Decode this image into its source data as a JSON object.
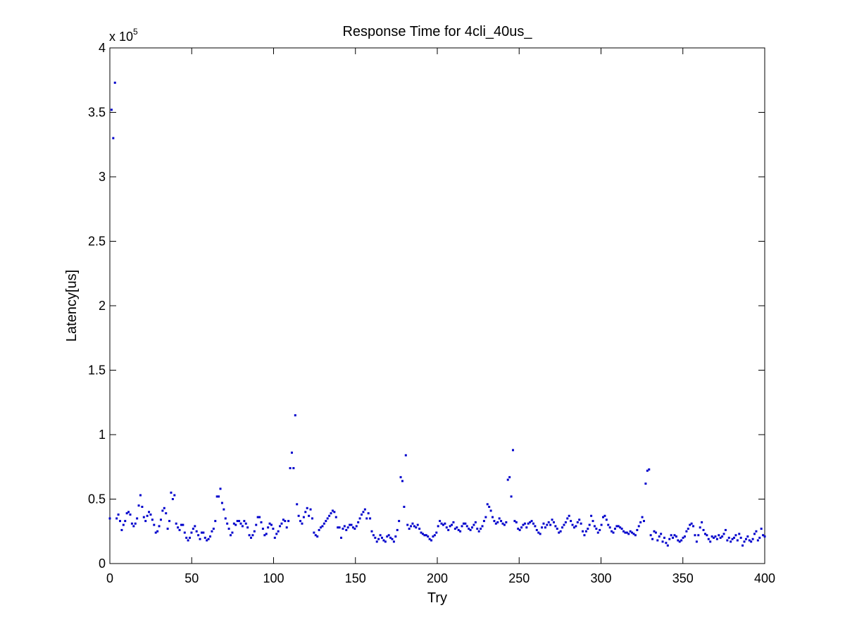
{
  "chart_data": {
    "type": "scatter",
    "title": "Response Time for 4cli_40us_",
    "xlabel": "Try",
    "ylabel": "Latency[us]",
    "y_multiplier_base": "x 10",
    "y_multiplier_exp": "5",
    "xlim": [
      0,
      400
    ],
    "ylim": [
      0,
      400000
    ],
    "xticks": [
      0,
      50,
      100,
      150,
      200,
      250,
      300,
      350,
      400
    ],
    "xtick_labels": [
      "0",
      "50",
      "100",
      "150",
      "200",
      "250",
      "300",
      "350",
      "400"
    ],
    "yticks": [
      0,
      50000,
      100000,
      150000,
      200000,
      250000,
      300000,
      350000,
      400000
    ],
    "ytick_labels": [
      "0",
      "0.5",
      "1",
      "1.5",
      "2",
      "2.5",
      "3",
      "3.5",
      "4"
    ],
    "grid": false,
    "marker_color": "#0000cc",
    "series": [
      {
        "y": [
          35000,
          352000,
          330000,
          373000,
          35000,
          38000,
          33000,
          26000,
          30000,
          33000,
          39000,
          40000,
          38000,
          31000,
          29000,
          31000,
          35000,
          45000,
          53000,
          44000,
          36000,
          33000,
          37000,
          40000,
          38000,
          34000,
          30000,
          24000,
          25000,
          29000,
          34000,
          41000,
          43000,
          39000,
          27000,
          33000,
          55000,
          50000,
          53000,
          31000,
          28000,
          26000,
          30000,
          30000,
          24000,
          20000,
          18000,
          20000,
          24000,
          27000,
          29000,
          25000,
          22000,
          19000,
          24000,
          24000,
          20000,
          18000,
          19000,
          21000,
          25000,
          27000,
          33000,
          52000,
          52000,
          58000,
          47000,
          42000,
          35000,
          31000,
          27000,
          22000,
          24000,
          31000,
          30000,
          33000,
          33000,
          31000,
          29000,
          33000,
          31000,
          28000,
          22000,
          20000,
          22000,
          25000,
          30000,
          36000,
          36000,
          32000,
          27000,
          22000,
          23000,
          28000,
          31000,
          30000,
          27000,
          20000,
          23000,
          25000,
          29000,
          31000,
          34000,
          33000,
          28000,
          33000,
          74000,
          86000,
          74000,
          115000,
          46000,
          37000,
          33000,
          31000,
          36000,
          40000,
          43000,
          37000,
          42000,
          35000,
          24000,
          22000,
          21000,
          26000,
          28000,
          29000,
          31000,
          33000,
          35000,
          37000,
          39000,
          41000,
          40000,
          36000,
          28000,
          28000,
          20000,
          27000,
          29000,
          26000,
          28000,
          30000,
          30000,
          28000,
          27000,
          29000,
          32000,
          35000,
          38000,
          40000,
          42000,
          35000,
          39000,
          35000,
          25000,
          22000,
          20000,
          17000,
          19000,
          22000,
          20000,
          18000,
          17000,
          21000,
          22000,
          20000,
          19000,
          17000,
          21000,
          26000,
          33000,
          67000,
          64000,
          44000,
          84000,
          30000,
          27000,
          29000,
          31000,
          29000,
          28000,
          30000,
          27000,
          24000,
          23000,
          22000,
          22000,
          21000,
          19000,
          18000,
          21000,
          22000,
          24000,
          29000,
          33000,
          31000,
          30000,
          31000,
          28000,
          26000,
          29000,
          30000,
          32000,
          27000,
          28000,
          26000,
          25000,
          29000,
          31000,
          31000,
          29000,
          27000,
          26000,
          28000,
          30000,
          32000,
          27000,
          25000,
          27000,
          29000,
          33000,
          36000,
          46000,
          44000,
          41000,
          36000,
          33000,
          31000,
          32000,
          35000,
          33000,
          31000,
          30000,
          32000,
          65000,
          67000,
          52000,
          88000,
          33000,
          32000,
          27000,
          26000,
          28000,
          30000,
          31000,
          28000,
          31000,
          32000,
          33000,
          31000,
          29000,
          26000,
          24000,
          23000,
          28000,
          31000,
          28000,
          30000,
          32000,
          30000,
          34000,
          32000,
          29000,
          27000,
          24000,
          25000,
          28000,
          30000,
          32000,
          35000,
          37000,
          33000,
          30000,
          28000,
          29000,
          32000,
          34000,
          31000,
          25000,
          22000,
          25000,
          27000,
          30000,
          37000,
          33000,
          29000,
          27000,
          24000,
          26000,
          30000,
          36000,
          37000,
          34000,
          30000,
          28000,
          25000,
          24000,
          27000,
          29000,
          29000,
          28000,
          27000,
          25000,
          24000,
          24000,
          23000,
          25000,
          24000,
          23000,
          22000,
          26000,
          29000,
          32000,
          36000,
          33000,
          62000,
          72000,
          73000,
          22000,
          19000,
          25000,
          24000,
          18000,
          21000,
          23000,
          17000,
          20000,
          16000,
          14000,
          19000,
          22000,
          20000,
          22000,
          21000,
          18000,
          17000,
          18000,
          20000,
          21000,
          25000,
          27000,
          30000,
          31000,
          29000,
          22000,
          17000,
          22000,
          28000,
          32000,
          26000,
          23000,
          22000,
          19000,
          17000,
          21000,
          20000,
          21000,
          19000,
          22000,
          20000,
          21000,
          23000,
          26000,
          18000,
          20000,
          17000,
          19000,
          20000,
          22000,
          18000,
          23000,
          20000,
          14000,
          17000,
          19000,
          21000,
          18000,
          17000,
          19000,
          23000,
          25000,
          18000,
          20000,
          27000,
          22000,
          21000
        ]
      }
    ]
  }
}
